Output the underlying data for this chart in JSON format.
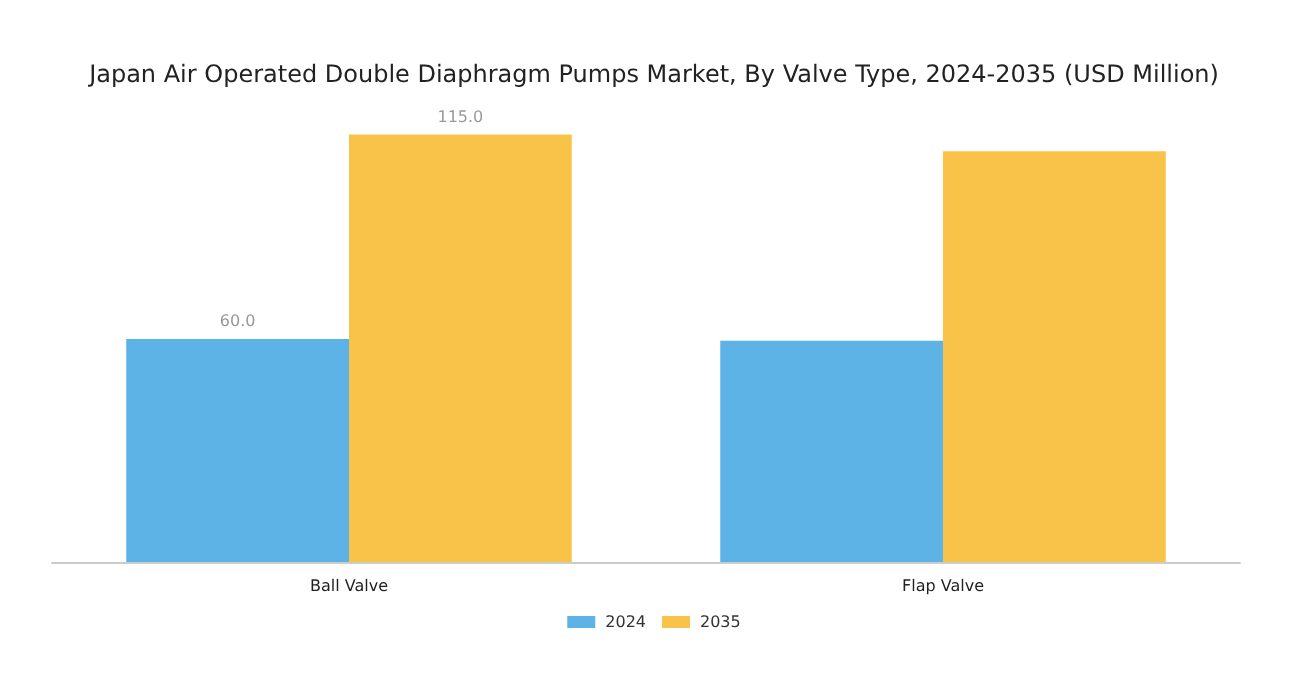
{
  "chart_data": {
    "type": "bar",
    "title": "Japan Air Operated Double Diaphragm Pumps Market, By Valve Type, 2024-2035 (USD Million)",
    "categories": [
      "Ball Valve",
      "Flap Valve"
    ],
    "series": [
      {
        "name": "2024",
        "color": "#5db3e6",
        "values": [
          60.0,
          59.5
        ],
        "value_labels": [
          "60.0",
          null
        ]
      },
      {
        "name": "2035",
        "color": "#f9c34a",
        "values": [
          115.0,
          110.5
        ],
        "value_labels": [
          "115.0",
          null
        ]
      }
    ],
    "legend": "bottom"
  }
}
